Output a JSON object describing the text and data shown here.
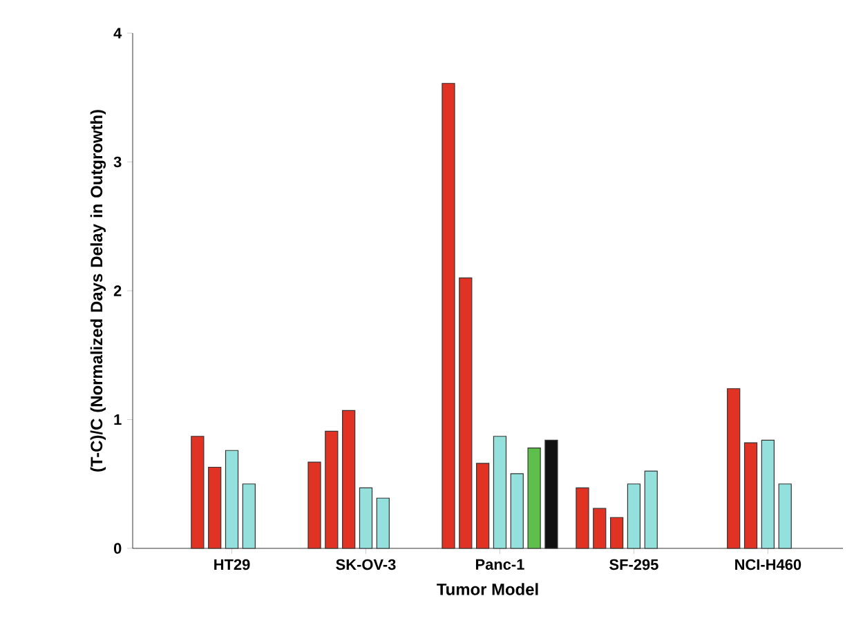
{
  "chart_data": {
    "type": "bar",
    "xlabel": "Tumor Model",
    "ylabel": "(T-C)/C (Normalized Days Delay in Outgrowth)",
    "categories": [
      "HT29",
      "SK-OV-3",
      "Panc-1",
      "SF-295",
      "NCI-H460"
    ],
    "ylim": [
      0,
      4
    ],
    "yticks": [
      0,
      1,
      2,
      3,
      4
    ],
    "series": [
      {
        "color": "#e03323",
        "values": [
          null,
          0.67,
          3.61,
          0.47,
          null
        ]
      },
      {
        "color": "#e03323",
        "values": [
          0.87,
          0.91,
          2.1,
          0.31,
          1.24
        ]
      },
      {
        "color": "#e03323",
        "values": [
          0.63,
          1.07,
          0.66,
          0.24,
          0.82
        ]
      },
      {
        "color": "#94e0dc",
        "values": [
          0.76,
          0.47,
          0.87,
          0.5,
          0.84
        ]
      },
      {
        "color": "#94e0dc",
        "values": [
          0.5,
          0.39,
          0.58,
          0.6,
          0.5
        ]
      },
      {
        "color": "#5cc04a",
        "values": [
          null,
          null,
          0.78,
          null,
          null
        ]
      },
      {
        "color": "#111111",
        "values": [
          null,
          null,
          0.84,
          null,
          null
        ]
      }
    ]
  }
}
